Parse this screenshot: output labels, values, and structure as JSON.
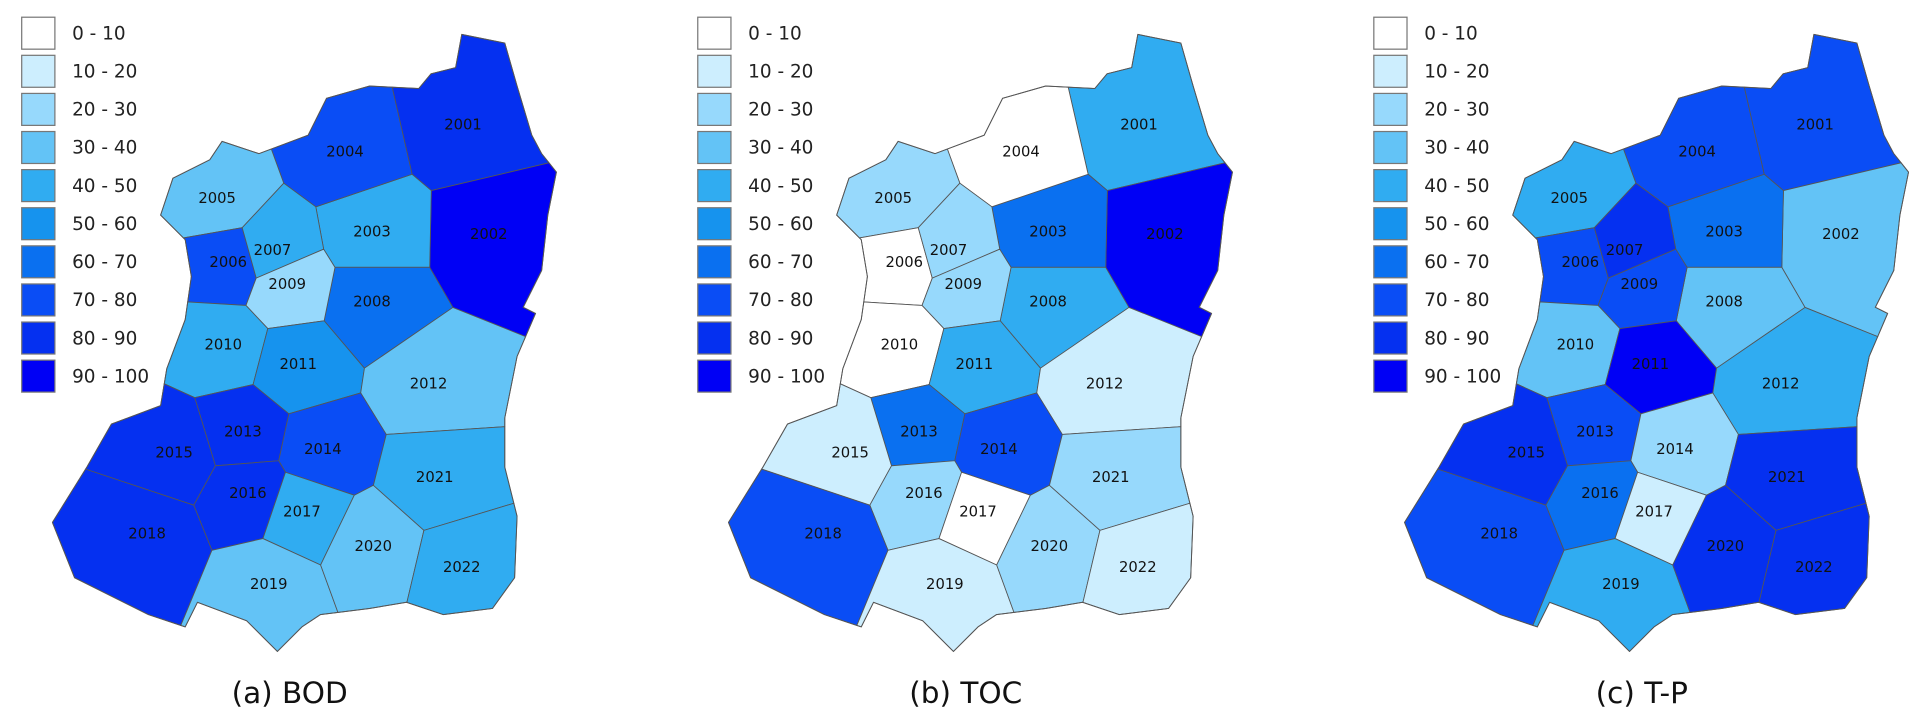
{
  "panels": [
    {
      "caption": "(a) BOD",
      "legend": [
        {
          "label": "0 - 10",
          "color": "#ffffff"
        },
        {
          "label": "10 - 20",
          "color": "#cdeefe"
        },
        {
          "label": "20 - 30",
          "color": "#97d9fc"
        },
        {
          "label": "30 - 40",
          "color": "#63c3f6"
        },
        {
          "label": "40 - 50",
          "color": "#30acf1"
        },
        {
          "label": "50 - 60",
          "color": "#1693ee"
        },
        {
          "label": "60 - 70",
          "color": "#0a70f0"
        },
        {
          "label": "70 - 80",
          "color": "#0a4df5"
        },
        {
          "label": "80 - 90",
          "color": "#0530f0"
        },
        {
          "label": "90 - 100",
          "color": "#0000f5"
        }
      ],
      "regions": [
        {
          "label": "2001",
          "color": "#0530f0"
        },
        {
          "label": "2002",
          "color": "#0000f5"
        },
        {
          "label": "2003",
          "color": "#30acf1"
        },
        {
          "label": "2004",
          "color": "#0a4df5"
        },
        {
          "label": "2005",
          "color": "#63c3f6"
        },
        {
          "label": "2006",
          "color": "#0a4df5"
        },
        {
          "label": "2007",
          "color": "#30acf1"
        },
        {
          "label": "2008",
          "color": "#0a70f0"
        },
        {
          "label": "2009",
          "color": "#97d9fc"
        },
        {
          "label": "2010",
          "color": "#30acf1"
        },
        {
          "label": "2011",
          "color": "#1693ee"
        },
        {
          "label": "2012",
          "color": "#63c3f6"
        },
        {
          "label": "2013",
          "color": "#0530f0"
        },
        {
          "label": "2014",
          "color": "#0a4df5"
        },
        {
          "label": "2015",
          "color": "#0530f0"
        },
        {
          "label": "2016",
          "color": "#0530f0"
        },
        {
          "label": "2017",
          "color": "#30acf1"
        },
        {
          "label": "2018",
          "color": "#0530f0"
        },
        {
          "label": "2019",
          "color": "#63c3f6"
        },
        {
          "label": "2020",
          "color": "#63c3f6"
        },
        {
          "label": "2021",
          "color": "#30acf1"
        },
        {
          "label": "2022",
          "color": "#30acf1"
        }
      ]
    },
    {
      "caption": "(b) TOC",
      "legend": [
        {
          "label": "0 - 10",
          "color": "#ffffff"
        },
        {
          "label": "10 - 20",
          "color": "#cdeefe"
        },
        {
          "label": "20 - 30",
          "color": "#97d9fc"
        },
        {
          "label": "30 - 40",
          "color": "#63c3f6"
        },
        {
          "label": "40 - 50",
          "color": "#30acf1"
        },
        {
          "label": "50 - 60",
          "color": "#1693ee"
        },
        {
          "label": "60 - 70",
          "color": "#0a70f0"
        },
        {
          "label": "70 - 80",
          "color": "#0a4df5"
        },
        {
          "label": "80 - 90",
          "color": "#0530f0"
        },
        {
          "label": "90 - 100",
          "color": "#0000f5"
        }
      ],
      "regions": [
        {
          "label": "2001",
          "color": "#30acf1"
        },
        {
          "label": "2002",
          "color": "#0000f5"
        },
        {
          "label": "2003",
          "color": "#0a70f0"
        },
        {
          "label": "2004",
          "color": "#ffffff"
        },
        {
          "label": "2005",
          "color": "#97d9fc"
        },
        {
          "label": "2006",
          "color": "#ffffff"
        },
        {
          "label": "2007",
          "color": "#97d9fc"
        },
        {
          "label": "2008",
          "color": "#30acf1"
        },
        {
          "label": "2009",
          "color": "#97d9fc"
        },
        {
          "label": "2010",
          "color": "#ffffff"
        },
        {
          "label": "2011",
          "color": "#30acf1"
        },
        {
          "label": "2012",
          "color": "#cdeefe"
        },
        {
          "label": "2013",
          "color": "#0a70f0"
        },
        {
          "label": "2014",
          "color": "#0a4df5"
        },
        {
          "label": "2015",
          "color": "#cdeefe"
        },
        {
          "label": "2016",
          "color": "#97d9fc"
        },
        {
          "label": "2017",
          "color": "#ffffff"
        },
        {
          "label": "2018",
          "color": "#0a4df5"
        },
        {
          "label": "2019",
          "color": "#cdeefe"
        },
        {
          "label": "2020",
          "color": "#97d9fc"
        },
        {
          "label": "2021",
          "color": "#97d9fc"
        },
        {
          "label": "2022",
          "color": "#cdeefe"
        }
      ]
    },
    {
      "caption": "(c) T-P",
      "legend": [
        {
          "label": "0 - 10",
          "color": "#ffffff"
        },
        {
          "label": "10 - 20",
          "color": "#cdeefe"
        },
        {
          "label": "20 - 30",
          "color": "#97d9fc"
        },
        {
          "label": "30 - 40",
          "color": "#63c3f6"
        },
        {
          "label": "40 - 50",
          "color": "#30acf1"
        },
        {
          "label": "50 - 60",
          "color": "#1693ee"
        },
        {
          "label": "60 - 70",
          "color": "#0a70f0"
        },
        {
          "label": "70 - 80",
          "color": "#0a4df5"
        },
        {
          "label": "80 - 90",
          "color": "#0530f0"
        },
        {
          "label": "90 - 100",
          "color": "#0000f5"
        }
      ],
      "regions": [
        {
          "label": "2001",
          "color": "#0a4df5"
        },
        {
          "label": "2002",
          "color": "#63c3f6"
        },
        {
          "label": "2003",
          "color": "#0a70f0"
        },
        {
          "label": "2004",
          "color": "#0a4df5"
        },
        {
          "label": "2005",
          "color": "#30acf1"
        },
        {
          "label": "2006",
          "color": "#0a4df5"
        },
        {
          "label": "2007",
          "color": "#0530f0"
        },
        {
          "label": "2008",
          "color": "#63c3f6"
        },
        {
          "label": "2009",
          "color": "#0a4df5"
        },
        {
          "label": "2010",
          "color": "#63c3f6"
        },
        {
          "label": "2011",
          "color": "#0000f5"
        },
        {
          "label": "2012",
          "color": "#30acf1"
        },
        {
          "label": "2013",
          "color": "#0a4df5"
        },
        {
          "label": "2014",
          "color": "#97d9fc"
        },
        {
          "label": "2015",
          "color": "#0530f0"
        },
        {
          "label": "2016",
          "color": "#0a70f0"
        },
        {
          "label": "2017",
          "color": "#cdeefe"
        },
        {
          "label": "2018",
          "color": "#0a4df5"
        },
        {
          "label": "2019",
          "color": "#30acf1"
        },
        {
          "label": "2020",
          "color": "#0530f0"
        },
        {
          "label": "2021",
          "color": "#0530f0"
        },
        {
          "label": "2022",
          "color": "#0530f0"
        }
      ]
    }
  ]
}
